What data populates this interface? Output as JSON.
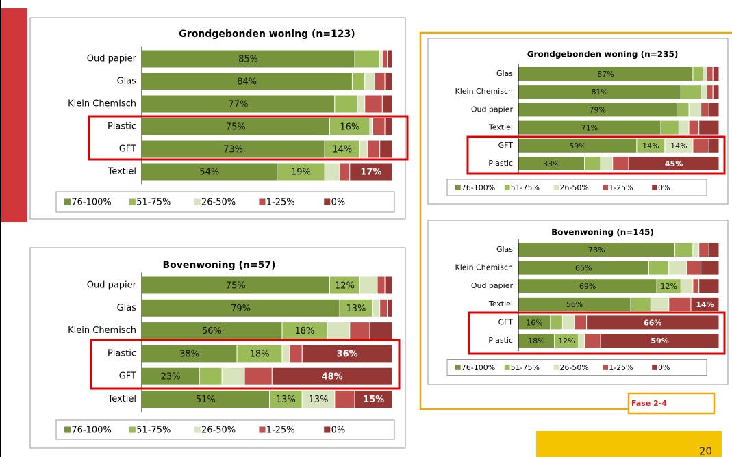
{
  "chart_data": [
    {
      "type": "stacked-bar-horizontal",
      "title": "Grondgebonden woning (n=123)",
      "categories": [
        "Oud papier",
        "Glas",
        "Klein Chemisch",
        "Plastic",
        "GFT",
        "Textiel"
      ],
      "series": [
        {
          "name": "76-100%",
          "color": "#77933c",
          "values": [
            85,
            84,
            77,
            75,
            73,
            54
          ],
          "value_labels": [
            "85%",
            "84%",
            "77%",
            "75%",
            "73%",
            "54%"
          ]
        },
        {
          "name": "51-75%",
          "color": "#9bbb59",
          "values": [
            10,
            5,
            9,
            16,
            14,
            19
          ],
          "value_labels": [
            null,
            null,
            null,
            "16%",
            "14%",
            "19%"
          ]
        },
        {
          "name": "26-50%",
          "color": "#d7e4bd",
          "values": [
            1,
            4,
            3,
            1,
            3,
            6
          ]
        },
        {
          "name": "1-25%",
          "color": "#c0504d",
          "values": [
            2,
            4,
            7,
            5,
            5,
            4
          ]
        },
        {
          "name": "0%",
          "color": "#953735",
          "values": [
            2,
            3,
            4,
            3,
            5,
            17
          ],
          "value_labels": [
            null,
            null,
            null,
            null,
            null,
            "17%"
          ]
        }
      ]
    },
    {
      "type": "stacked-bar-horizontal",
      "title": "Bovenwoning (n=57)",
      "categories": [
        "Oud papier",
        "Glas",
        "Klein Chemisch",
        "Plastic",
        "GFT",
        "Textiel"
      ],
      "series": [
        {
          "name": "76-100%",
          "color": "#77933c",
          "values": [
            75,
            79,
            56,
            38,
            23,
            51
          ],
          "value_labels": [
            "75%",
            "79%",
            "56%",
            "38%",
            "23%",
            "51%"
          ]
        },
        {
          "name": "51-75%",
          "color": "#9bbb59",
          "values": [
            12,
            13,
            18,
            18,
            9,
            13
          ],
          "value_labels": [
            "12%",
            "13%",
            "18%",
            "18%",
            null,
            "13%"
          ]
        },
        {
          "name": "26-50%",
          "color": "#d7e4bd",
          "values": [
            7,
            3,
            9,
            3,
            9,
            13
          ],
          "value_labels": [
            null,
            null,
            null,
            null,
            null,
            "13%"
          ]
        },
        {
          "name": "1-25%",
          "color": "#c0504d",
          "values": [
            3,
            3,
            8,
            5,
            11,
            8
          ]
        },
        {
          "name": "0%",
          "color": "#953735",
          "values": [
            3,
            2,
            9,
            36,
            48,
            15
          ],
          "value_labels": [
            null,
            null,
            null,
            "36%",
            "48%",
            "15%"
          ]
        }
      ]
    },
    {
      "type": "stacked-bar-horizontal",
      "title": "Grondgebonden woning (n=235)",
      "categories": [
        "Glas",
        "Klein Chemisch",
        "Oud papier",
        "Textiel",
        "GFT",
        "Plastic"
      ],
      "series": [
        {
          "name": "76-100%",
          "color": "#77933c",
          "values": [
            87,
            81,
            79,
            71,
            59,
            33
          ],
          "value_labels": [
            "87%",
            "81%",
            "79%",
            "71%",
            "59%",
            "33%"
          ]
        },
        {
          "name": "51-75%",
          "color": "#9bbb59",
          "values": [
            5,
            10,
            6,
            9,
            14,
            8
          ],
          "value_labels": [
            null,
            null,
            null,
            null,
            "14%",
            null
          ]
        },
        {
          "name": "26-50%",
          "color": "#d7e4bd",
          "values": [
            2,
            3,
            6,
            5,
            14,
            6
          ],
          "value_labels": [
            null,
            null,
            null,
            null,
            "14%",
            null
          ]
        },
        {
          "name": "1-25%",
          "color": "#c0504d",
          "values": [
            3,
            3,
            4,
            5,
            8,
            8
          ]
        },
        {
          "name": "0%",
          "color": "#953735",
          "values": [
            3,
            3,
            5,
            10,
            5,
            45
          ],
          "value_labels": [
            null,
            null,
            null,
            null,
            null,
            "45%"
          ]
        }
      ]
    },
    {
      "type": "stacked-bar-horizontal",
      "title": "Bovenwoning (n=145)",
      "categories": [
        "Glas",
        "Klein Chemisch",
        "Oud papier",
        "Textiel",
        "GFT",
        "Plastic"
      ],
      "series": [
        {
          "name": "76-100%",
          "color": "#77933c",
          "values": [
            78,
            65,
            69,
            56,
            16,
            18
          ],
          "value_labels": [
            "78%",
            "65%",
            "69%",
            "56%",
            "16%",
            "18%"
          ]
        },
        {
          "name": "51-75%",
          "color": "#9bbb59",
          "values": [
            9,
            10,
            12,
            10,
            6,
            12
          ],
          "value_labels": [
            null,
            null,
            "12%",
            null,
            null,
            "12%"
          ]
        },
        {
          "name": "26-50%",
          "color": "#d7e4bd",
          "values": [
            3,
            9,
            6,
            9,
            6,
            3
          ]
        },
        {
          "name": "1-25%",
          "color": "#c0504d",
          "values": [
            5,
            7,
            3,
            11,
            6,
            8
          ]
        },
        {
          "name": "0%",
          "color": "#953735",
          "values": [
            5,
            9,
            10,
            14,
            66,
            59
          ],
          "value_labels": [
            null,
            null,
            null,
            "14%",
            "66%",
            "59%"
          ]
        }
      ]
    }
  ],
  "slide": {
    "phase_label": "Fase 2-4",
    "page_number": "20"
  }
}
